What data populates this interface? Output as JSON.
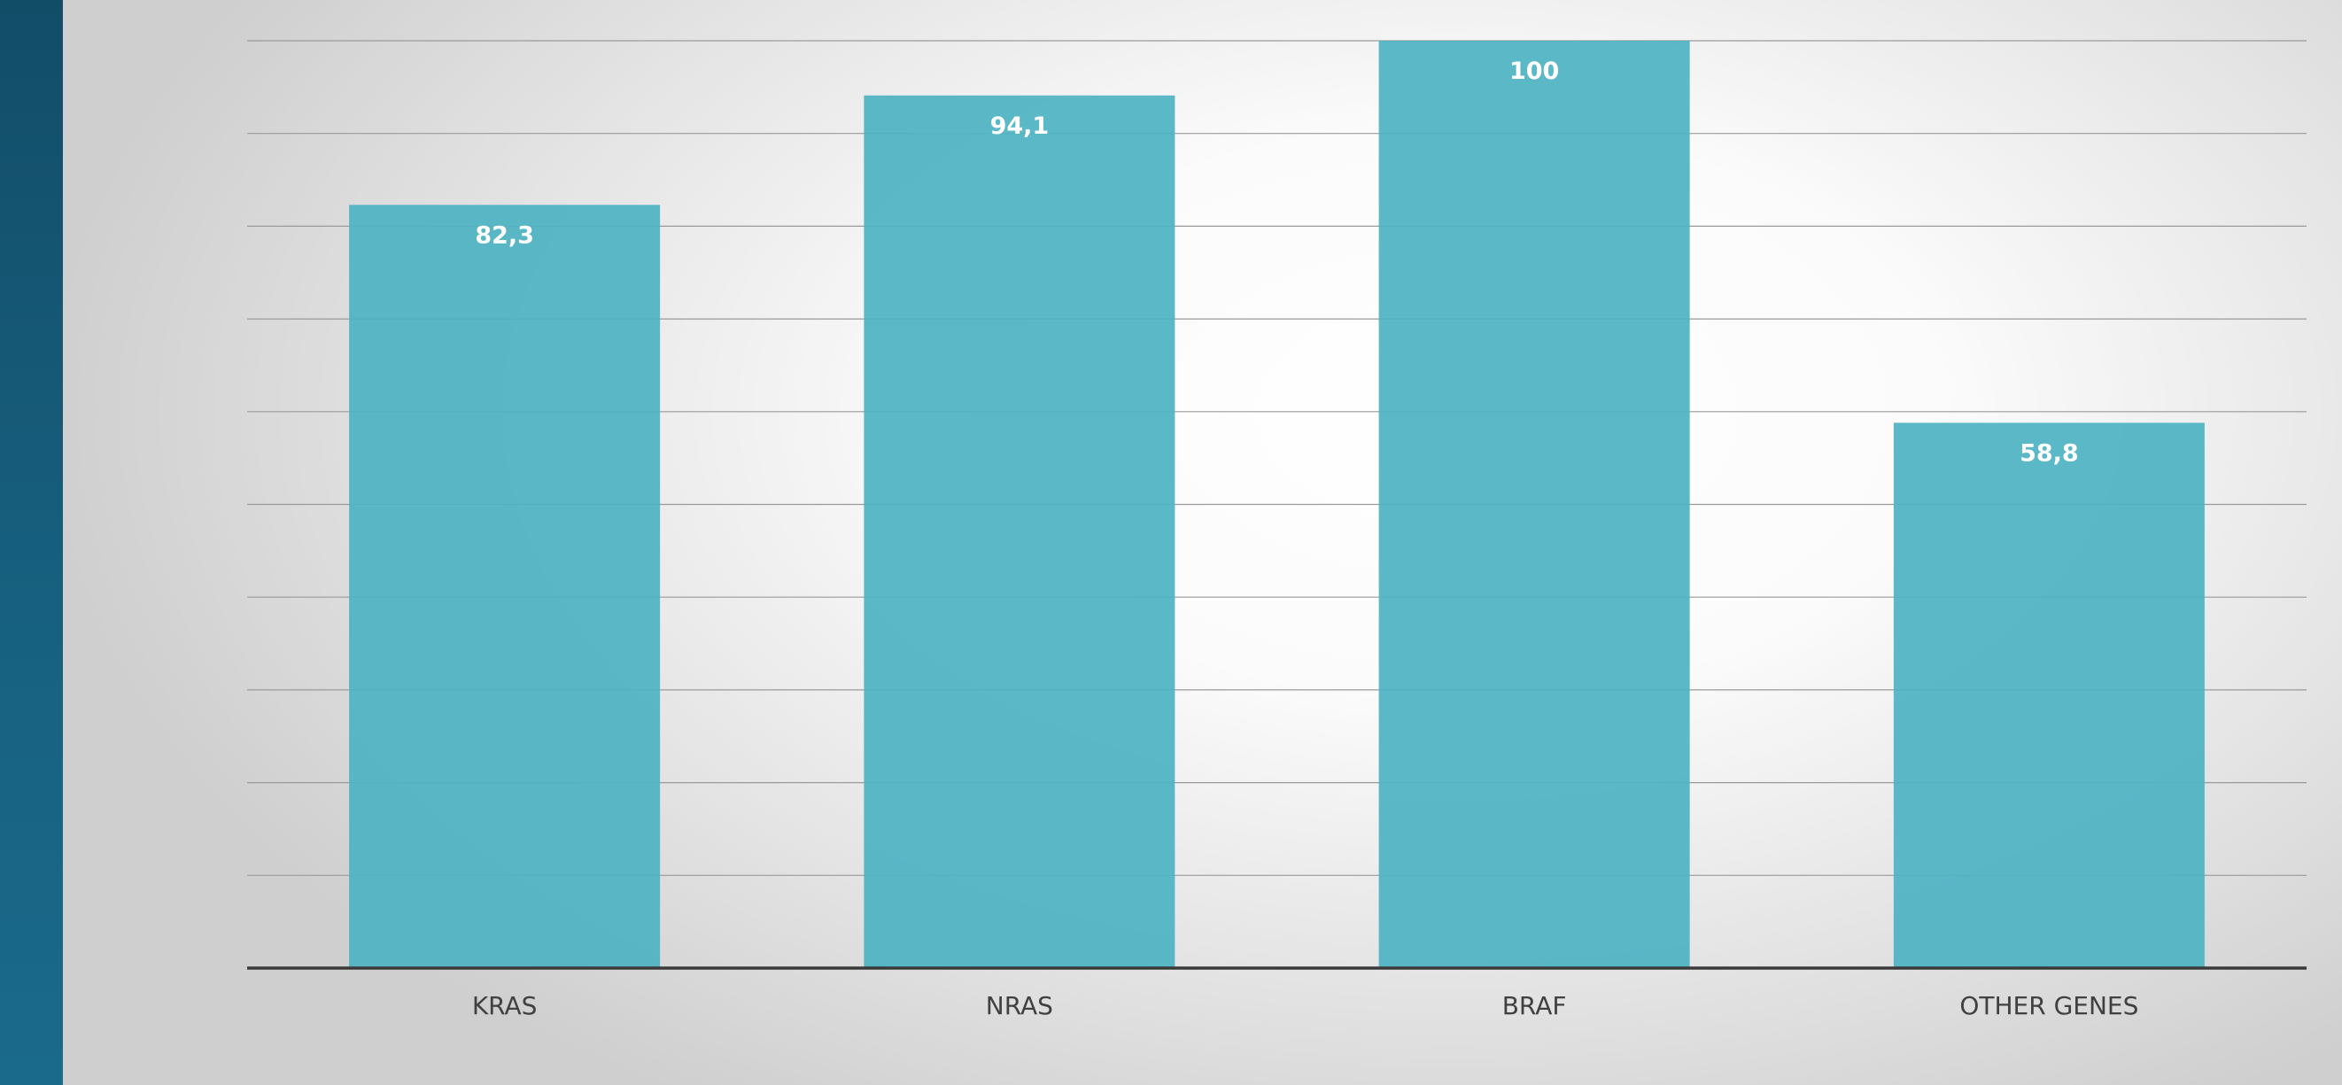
{
  "colors": {
    "bar": "#4fb3c3",
    "sidebar": "#155a78",
    "axis": "#3a3a3a",
    "grid": "#9a9a9a"
  },
  "chart_data": {
    "type": "bar",
    "categories": [
      "KRAS",
      "NRAS",
      "BRAF",
      "OTHER GENES"
    ],
    "values": [
      82.3,
      94.1,
      100,
      58.8
    ],
    "data_labels": [
      "82,3",
      "94,1",
      "100",
      "58,8"
    ],
    "ylim": [
      0,
      100
    ],
    "grid": true,
    "legend": "none"
  }
}
